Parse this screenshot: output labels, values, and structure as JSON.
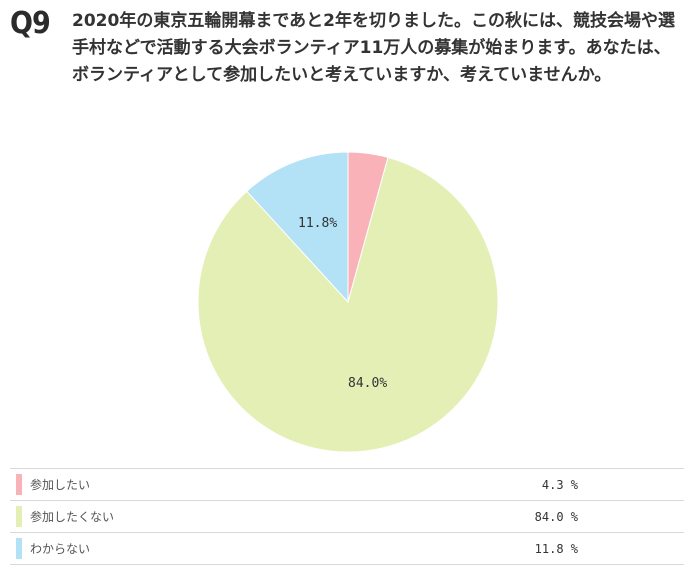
{
  "question": {
    "number": "Q9",
    "text": "2020年の東京五輪開幕まであと2年を切りました。この秋には、競技会場や選手村などで活動する大会ボランティア11万人の募集が始まります。あなたは、ボランティアとして参加したいと考えていますか、考えていませんか。"
  },
  "chart_data": {
    "type": "pie",
    "categories": [
      "参加したい",
      "参加したくない",
      "わからない"
    ],
    "values": [
      4.3,
      84.0,
      11.8
    ],
    "value_labels": [
      "",
      "84.0%",
      "11.8%"
    ],
    "legend_values": [
      "4.3 %",
      "84.0 %",
      "11.8 %"
    ],
    "colors": [
      "#f9b2b7",
      "#e3efb4",
      "#b3e2f7"
    ],
    "start": "top, clockwise",
    "legend_position": "bottom"
  }
}
